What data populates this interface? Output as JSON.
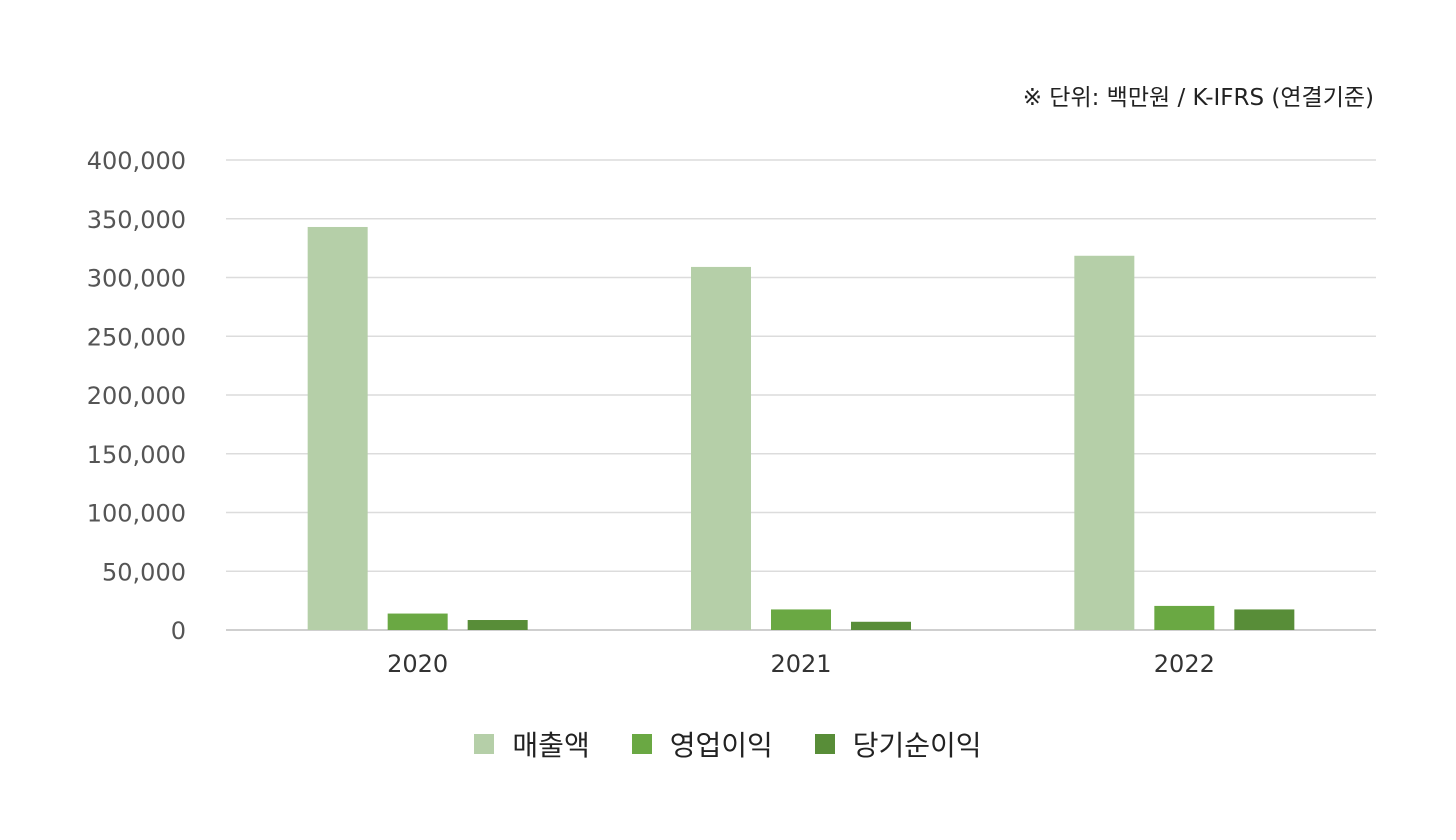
{
  "unit_note": "※ 단위: 백만원 / K-IFRS (연결기준)",
  "chart_data": {
    "type": "bar",
    "categories": [
      "2020",
      "2021",
      "2022"
    ],
    "series": [
      {
        "name": "매출액",
        "values": [
          343000,
          309000,
          318500
        ],
        "color": "#b5cfa8"
      },
      {
        "name": "영업이익",
        "values": [
          14000,
          17500,
          20500
        ],
        "color": "#6aa843"
      },
      {
        "name": "당기순이익",
        "values": [
          8500,
          7000,
          17500
        ],
        "color": "#588d38"
      }
    ],
    "ylim": [
      0,
      400000
    ],
    "yticks": [
      0,
      50000,
      100000,
      150000,
      200000,
      250000,
      300000,
      350000,
      400000
    ],
    "ytick_labels": [
      "0",
      "50,000",
      "100,000",
      "150,000",
      "200,000",
      "250,000",
      "300,000",
      "350,000",
      "400,000"
    ],
    "grid": true,
    "legend_position": "bottom"
  }
}
